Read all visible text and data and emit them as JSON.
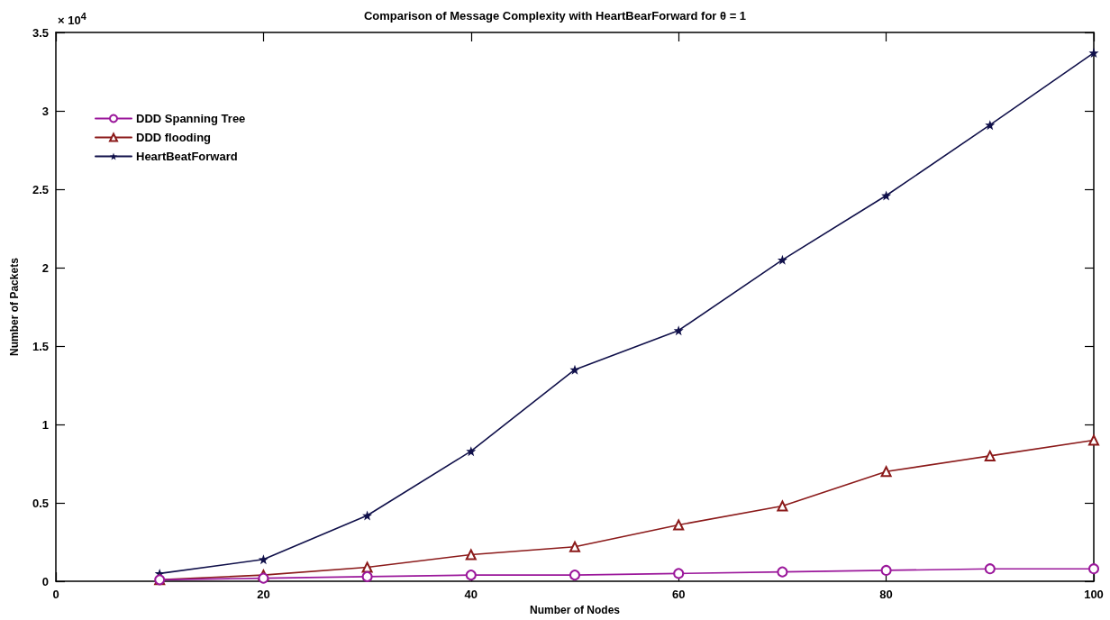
{
  "chart_data": {
    "type": "line",
    "title": "Comparison of Message Complexity with HeartBearForward for θ = 1",
    "xlabel": "Number of Nodes",
    "ylabel": "Number of Packets",
    "annotations": [
      "× 10$^{4}$"
    ],
    "x": [
      10,
      20,
      30,
      40,
      50,
      60,
      70,
      80,
      90,
      100
    ],
    "series": [
      {
        "name": "DDD Spanning Tree",
        "color": "#9b189b",
        "marker": "circle",
        "values": [
          0.01,
          0.02,
          0.03,
          0.04,
          0.04,
          0.05,
          0.06,
          0.07,
          0.08,
          0.08
        ]
      },
      {
        "name": "DDD flooding",
        "color": "#8b1a1a",
        "marker": "triangle",
        "values": [
          0.01,
          0.04,
          0.09,
          0.17,
          0.22,
          0.36,
          0.48,
          0.7,
          0.8,
          0.9
        ]
      },
      {
        "name": "HeartBeatForward",
        "color": "#10104a",
        "marker": "star",
        "values": [
          0.05,
          0.14,
          0.42,
          0.83,
          1.35,
          1.6,
          2.05,
          2.46,
          2.91,
          3.37
        ]
      }
    ],
    "xlim": [
      0,
      100
    ],
    "xticks": [
      0,
      20,
      40,
      60,
      80,
      100
    ],
    "ylim": [
      0,
      3.5
    ],
    "yticks": [
      0,
      0.5,
      1,
      1.5,
      2,
      2.5,
      3,
      3.5
    ],
    "grid": false,
    "legend": "top left",
    "line_style": "solid"
  }
}
